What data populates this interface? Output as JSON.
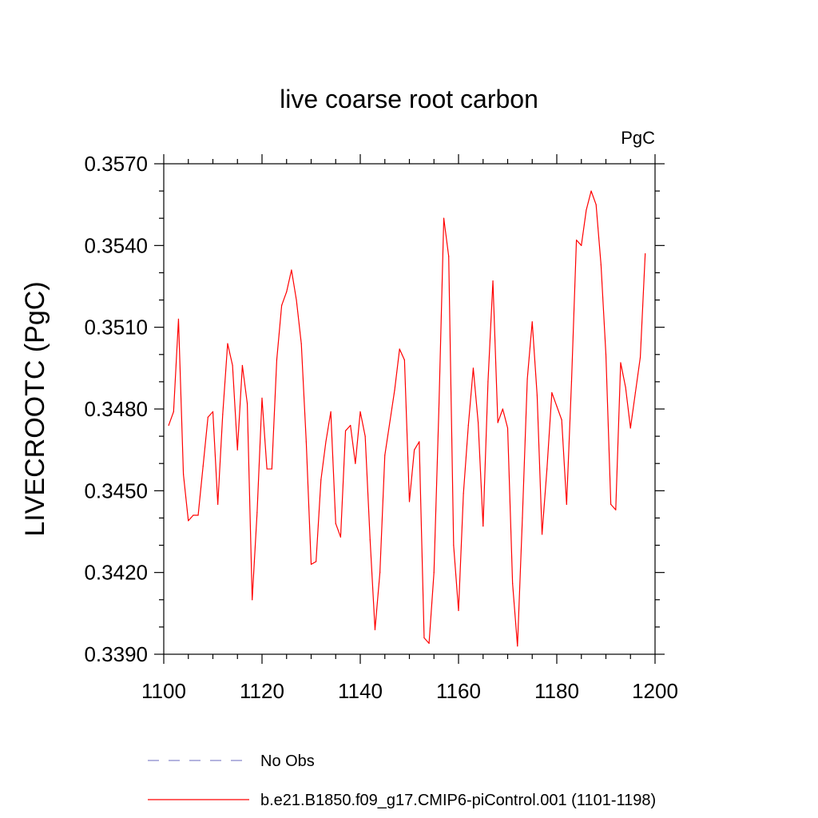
{
  "chart_data": {
    "type": "line",
    "title": "live coarse root carbon",
    "units_label": "PgC",
    "xlabel": "",
    "ylabel": "LIVECROOTC  (PgC)",
    "xlim": [
      1100,
      1200
    ],
    "ylim": [
      0.339,
      0.357
    ],
    "x_ticks": [
      1100,
      1120,
      1140,
      1160,
      1180,
      1200
    ],
    "x_tick_labels": [
      "1100",
      "1120",
      "1140",
      "1160",
      "1180",
      "1200"
    ],
    "y_ticks": [
      0.339,
      0.342,
      0.345,
      0.348,
      0.351,
      0.354,
      0.357
    ],
    "y_tick_labels": [
      "0.3390",
      "0.3420",
      "0.3450",
      "0.3480",
      "0.3510",
      "0.3540",
      "0.3570"
    ],
    "grid": false,
    "legend_position": "bottom",
    "legend": [
      {
        "name": "No Obs",
        "color": "#8888cc",
        "style": "dashed"
      },
      {
        "name": "b.e21.B1850.f09_g17.CMIP6-piControl.001 (1101-1198)",
        "color": "#ff0000",
        "style": "solid"
      }
    ],
    "series": [
      {
        "name": "b.e21.B1850.f09_g17.CMIP6-piControl.001 (1101-1198)",
        "color": "#ff0000",
        "x": [
          1101,
          1102,
          1103,
          1104,
          1105,
          1106,
          1107,
          1108,
          1109,
          1110,
          1111,
          1112,
          1113,
          1114,
          1115,
          1116,
          1117,
          1118,
          1119,
          1120,
          1121,
          1122,
          1123,
          1124,
          1125,
          1126,
          1127,
          1128,
          1129,
          1130,
          1131,
          1132,
          1133,
          1134,
          1135,
          1136,
          1137,
          1138,
          1139,
          1140,
          1141,
          1142,
          1143,
          1144,
          1145,
          1146,
          1147,
          1148,
          1149,
          1150,
          1151,
          1152,
          1153,
          1154,
          1155,
          1156,
          1157,
          1158,
          1159,
          1160,
          1161,
          1162,
          1163,
          1164,
          1165,
          1166,
          1167,
          1168,
          1169,
          1170,
          1171,
          1172,
          1173,
          1174,
          1175,
          1176,
          1177,
          1178,
          1179,
          1180,
          1181,
          1182,
          1183,
          1184,
          1185,
          1186,
          1187,
          1188,
          1189,
          1190,
          1191,
          1192,
          1193,
          1194,
          1195,
          1196,
          1197,
          1198
        ],
        "values": [
          0.3474,
          0.3479,
          0.3513,
          0.3456,
          0.3439,
          0.3441,
          0.3441,
          0.3459,
          0.3477,
          0.3479,
          0.3445,
          0.3478,
          0.3504,
          0.3496,
          0.3465,
          0.3496,
          0.3482,
          0.341,
          0.3442,
          0.3484,
          0.3458,
          0.3458,
          0.3498,
          0.3518,
          0.3523,
          0.3531,
          0.352,
          0.3504,
          0.3468,
          0.3423,
          0.3424,
          0.3454,
          0.3468,
          0.3479,
          0.3438,
          0.3433,
          0.3472,
          0.3474,
          0.346,
          0.3479,
          0.347,
          0.3432,
          0.3399,
          0.342,
          0.3463,
          0.3475,
          0.3487,
          0.3502,
          0.3498,
          0.3446,
          0.3465,
          0.3468,
          0.3396,
          0.3394,
          0.342,
          0.348,
          0.355,
          0.3536,
          0.343,
          0.3406,
          0.3449,
          0.3474,
          0.3495,
          0.3475,
          0.3437,
          0.349,
          0.3527,
          0.3475,
          0.348,
          0.3473,
          0.3416,
          0.3393,
          0.344,
          0.3491,
          0.3512,
          0.3485,
          0.3434,
          0.3458,
          0.3486,
          0.3481,
          0.3476,
          0.3445,
          0.349,
          0.3542,
          0.354,
          0.3553,
          0.356,
          0.3555,
          0.3533,
          0.35,
          0.3445,
          0.3443,
          0.3497,
          0.3488,
          0.3473,
          0.3486,
          0.3499,
          0.3537
        ]
      }
    ]
  }
}
